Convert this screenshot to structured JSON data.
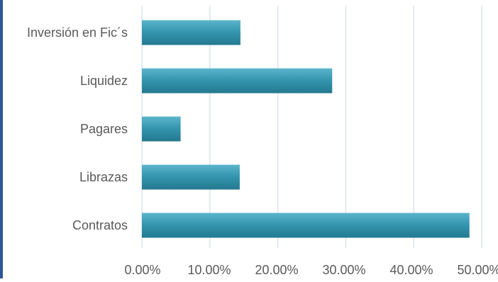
{
  "chart_data": {
    "type": "bar",
    "orientation": "horizontal",
    "categories": [
      "Inversión en Fic´s",
      "Liquidez",
      "Pagares",
      "Librazas",
      "Contratos"
    ],
    "values": [
      14.5,
      28.0,
      5.7,
      14.4,
      48.2
    ],
    "xlim": [
      0,
      50
    ],
    "x_ticks": [
      0,
      10,
      20,
      30,
      40,
      50
    ],
    "x_tick_labels": [
      "0.00%",
      "10.00%",
      "20.00%",
      "30.00%",
      "40.00%",
      "50.00%"
    ],
    "grid": true,
    "bar_color": "#3394ad",
    "bar_color_highlight": "#5ab5cb",
    "bar_color_shadow": "#23798f",
    "grid_color": "#d9e4f2",
    "accent_color": "#2f5597"
  }
}
